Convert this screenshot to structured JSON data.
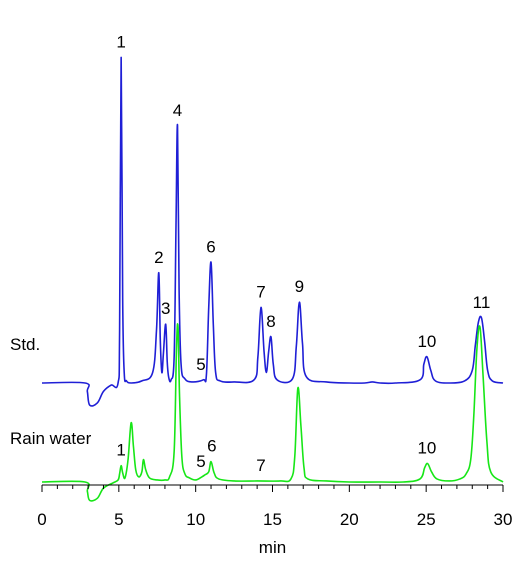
{
  "chart_data": {
    "type": "line",
    "xlabel": "min",
    "ylabel": "",
    "xlim": [
      0,
      30
    ],
    "xticks": [
      0,
      5,
      10,
      15,
      20,
      25,
      30
    ],
    "grid": false,
    "legend": "none",
    "series": [
      {
        "name": "Std.",
        "color": "#1f1fd6",
        "baseline": 0,
        "x": [
          0,
          2.8,
          2.95,
          3.1,
          3.6,
          4.0,
          4.5,
          4.95,
          5.05,
          5.15,
          5.25,
          5.35,
          5.5,
          5.8,
          6.5,
          7.2,
          7.45,
          7.6,
          7.7,
          7.8,
          7.9,
          8.05,
          8.15,
          8.25,
          8.4,
          8.6,
          8.72,
          8.82,
          8.92,
          9.05,
          9.3,
          9.8,
          10.5,
          10.7,
          10.85,
          11.0,
          11.15,
          11.3,
          11.6,
          12.5,
          13.8,
          14.05,
          14.25,
          14.45,
          14.6,
          14.75,
          14.9,
          15.05,
          15.3,
          16.3,
          16.55,
          16.75,
          16.95,
          17.2,
          18.5,
          20.0,
          21.0,
          21.5,
          22.0,
          23.0,
          24.6,
          24.85,
          25.05,
          25.3,
          25.6,
          26.5,
          27.5,
          28.0,
          28.2,
          28.4,
          28.6,
          28.8,
          29.0,
          29.3,
          30.0
        ],
        "y": [
          0,
          0,
          -8,
          -21,
          -19,
          -8,
          -2,
          0,
          50,
          310,
          80,
          10,
          2,
          0,
          2,
          10,
          50,
          105,
          40,
          10,
          28,
          56,
          20,
          5,
          3,
          25,
          150,
          245,
          90,
          18,
          4,
          1,
          3,
          8,
          72,
          115,
          55,
          10,
          2,
          1,
          3,
          25,
          72,
          30,
          10,
          30,
          44,
          18,
          3,
          4,
          35,
          77,
          38,
          6,
          1,
          0,
          0,
          1,
          0,
          0,
          3,
          18,
          25,
          12,
          2,
          0,
          2,
          12,
          36,
          58,
          62,
          40,
          12,
          2,
          0
        ]
      },
      {
        "name": "Rain water",
        "color": "#17e617",
        "baseline": 0,
        "x": [
          0,
          2.8,
          2.95,
          3.1,
          3.6,
          4.0,
          4.6,
          4.95,
          5.05,
          5.15,
          5.25,
          5.4,
          5.6,
          5.8,
          5.95,
          6.1,
          6.3,
          6.5,
          6.6,
          6.75,
          7.0,
          7.5,
          8.0,
          8.3,
          8.6,
          8.75,
          8.85,
          8.95,
          9.1,
          9.3,
          9.6,
          10.0,
          10.4,
          10.6,
          10.85,
          11.0,
          11.2,
          11.5,
          12.5,
          14.0,
          15.5,
          16.2,
          16.45,
          16.65,
          16.85,
          17.05,
          17.3,
          18.5,
          20.0,
          22.0,
          23.5,
          24.6,
          24.9,
          25.1,
          25.35,
          25.7,
          26.5,
          27.2,
          27.6,
          27.9,
          28.1,
          28.3,
          28.5,
          28.7,
          28.95,
          29.2,
          30.0
        ],
        "y": [
          0,
          0,
          -9,
          -18,
          -16,
          -6,
          -1,
          2,
          8,
          16,
          9,
          4,
          22,
          58,
          35,
          12,
          5,
          10,
          22,
          12,
          4,
          2,
          2,
          5,
          30,
          130,
          152,
          85,
          25,
          8,
          4,
          2,
          5,
          7,
          10,
          20,
          9,
          3,
          1,
          1,
          1,
          3,
          25,
          92,
          55,
          14,
          3,
          1,
          0,
          0,
          0,
          3,
          14,
          18,
          10,
          3,
          1,
          3,
          8,
          22,
          65,
          130,
          152,
          105,
          40,
          10,
          0
        ]
      }
    ],
    "annotations": [
      {
        "series": "Std.",
        "label": "1",
        "x": 5.15
      },
      {
        "series": "Std.",
        "label": "2",
        "x": 7.6
      },
      {
        "series": "Std.",
        "label": "3",
        "x": 8.05
      },
      {
        "series": "Std.",
        "label": "4",
        "x": 8.82
      },
      {
        "series": "Std.",
        "label": "5",
        "x": 10.35
      },
      {
        "series": "Std.",
        "label": "6",
        "x": 11.0
      },
      {
        "series": "Std.",
        "label": "7",
        "x": 14.25
      },
      {
        "series": "Std.",
        "label": "8",
        "x": 14.9
      },
      {
        "series": "Std.",
        "label": "9",
        "x": 16.75
      },
      {
        "series": "Std.",
        "label": "10",
        "x": 25.05
      },
      {
        "series": "Std.",
        "label": "11",
        "x": 28.6
      },
      {
        "series": "Rain water",
        "label": "1",
        "x": 5.15
      },
      {
        "series": "Rain water",
        "label": "5",
        "x": 10.35
      },
      {
        "series": "Rain water",
        "label": "6",
        "x": 11.05
      },
      {
        "series": "Rain water",
        "label": "7",
        "x": 14.25
      },
      {
        "series": "Rain water",
        "label": "10",
        "x": 25.05
      }
    ]
  }
}
